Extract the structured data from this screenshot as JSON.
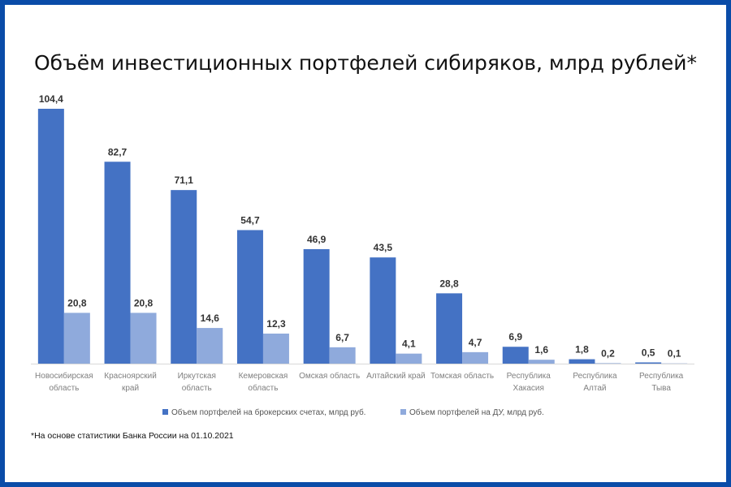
{
  "chart_data": {
    "type": "bar",
    "title": "Объём инвестиционных портфелей сибиряков, млрд рублей*",
    "categories": [
      [
        "Новосибирская",
        "область"
      ],
      [
        "Красноярский",
        "край"
      ],
      [
        "Иркутская",
        "область"
      ],
      [
        "Кемеровская",
        "область"
      ],
      [
        "Омская область"
      ],
      [
        "Алтайский край"
      ],
      [
        "Томская область"
      ],
      [
        "Республика",
        "Хакасия"
      ],
      [
        "Республика",
        "Алтай"
      ],
      [
        "Республика",
        "Тыва"
      ]
    ],
    "series": [
      {
        "name": "Объем портфелей на брокерских счетах, млрд руб.",
        "color": "#4472C4",
        "values": [
          104.4,
          82.7,
          71.1,
          54.7,
          46.9,
          43.5,
          28.8,
          6.9,
          1.8,
          0.5
        ],
        "labels": [
          "104,4",
          "82,7",
          "71,1",
          "54,7",
          "46,9",
          "43,5",
          "28,8",
          "6,9",
          "1,8",
          "0,5"
        ]
      },
      {
        "name": "Объем портфелей на ДУ,  млрд руб.",
        "color": "#8FAADC",
        "values": [
          20.8,
          20.8,
          14.6,
          12.3,
          6.7,
          4.1,
          4.7,
          1.6,
          0.2,
          0.1
        ],
        "labels": [
          "20,8",
          "20,8",
          "14,6",
          "12,3",
          "6,7",
          "4,1",
          "4,7",
          "1,6",
          "0,2",
          "0,1"
        ]
      }
    ],
    "ylim": [
      0,
      105
    ],
    "grid": false,
    "legend": "bottom",
    "footnote": "*На основе статистики Банка России на 01.10.2021"
  }
}
